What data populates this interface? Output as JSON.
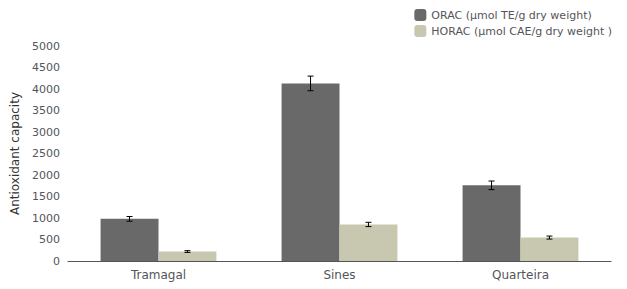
{
  "chart_data": {
    "type": "bar",
    "categories": [
      "Tramagal",
      "Sines",
      "Quarteira"
    ],
    "series": [
      {
        "name": "ORAC (μmol TE/g dry weight)",
        "color": "#696969",
        "values": [
          980,
          4130,
          1760
        ],
        "errors": [
          55,
          170,
          100
        ]
      },
      {
        "name": "HORAC (μmol CAE/g dry weight )",
        "color": "#c8c8b0",
        "values": [
          220,
          850,
          545
        ],
        "errors": [
          20,
          50,
          35
        ]
      }
    ],
    "ylabel": "Antioxidant capacity",
    "ylim": [
      0,
      5000
    ],
    "yticks": [
      0,
      500,
      1000,
      1500,
      2000,
      2500,
      3000,
      3500,
      4000,
      4500,
      5000
    ],
    "legend": "upper right",
    "grid": false
  }
}
